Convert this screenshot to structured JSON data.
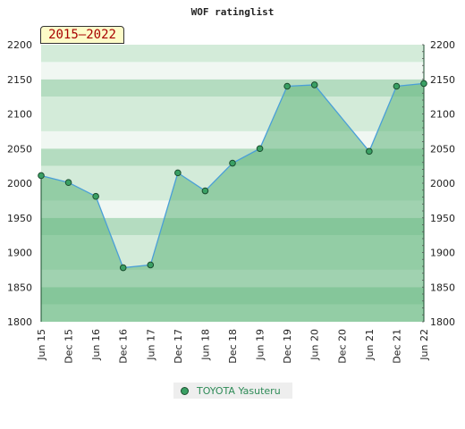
{
  "chart_data": {
    "type": "area",
    "title": "WOF ratinglist",
    "period_label": "2015–2022",
    "ylim": [
      1800,
      2200
    ],
    "y_ticks": [
      1800,
      1850,
      1900,
      1950,
      2000,
      2050,
      2100,
      2150,
      2200
    ],
    "x_tick_labels": [
      "Jun 15",
      "Dec 15",
      "Jun 16",
      "Dec 16",
      "Jun 17",
      "Dec 17",
      "Jun 18",
      "Dec 18",
      "Jun 19",
      "Dec 19",
      "Jun 20",
      "Dec 20",
      "Jun 21",
      "Dec 21",
      "Jun 22"
    ],
    "series": [
      {
        "name": "TOYOTA Yasuteru",
        "points": [
          {
            "x": "Jun 15",
            "y": 2011
          },
          {
            "x": "Dec 15",
            "y": 2001
          },
          {
            "x": "Jun 16",
            "y": 1981
          },
          {
            "x": "Dec 16",
            "y": 1878
          },
          {
            "x": "Jun 17",
            "y": 1882
          },
          {
            "x": "Dec 17",
            "y": 2015
          },
          {
            "x": "Jun 18",
            "y": 1989
          },
          {
            "x": "Dec 18",
            "y": 2029
          },
          {
            "x": "Jun 19",
            "y": 2050
          },
          {
            "x": "Dec 19",
            "y": 2140
          },
          {
            "x": "Jun 20",
            "y": 2142
          },
          {
            "x": "Jun 21",
            "y": 2046
          },
          {
            "x": "Dec 21",
            "y": 2140
          },
          {
            "x": "Jun 22",
            "y": 2144
          }
        ]
      }
    ],
    "colors": {
      "line": "#4a9fd8",
      "marker_fill": "#3aa064",
      "marker_stroke": "#1a4d2e",
      "area_fill": "#5fb47a",
      "band_light": "#f0f7f2",
      "band_mid": "#d3ebd9",
      "band_dark": "#b4dcc0"
    },
    "legend_position": "bottom-center",
    "grid": false
  }
}
